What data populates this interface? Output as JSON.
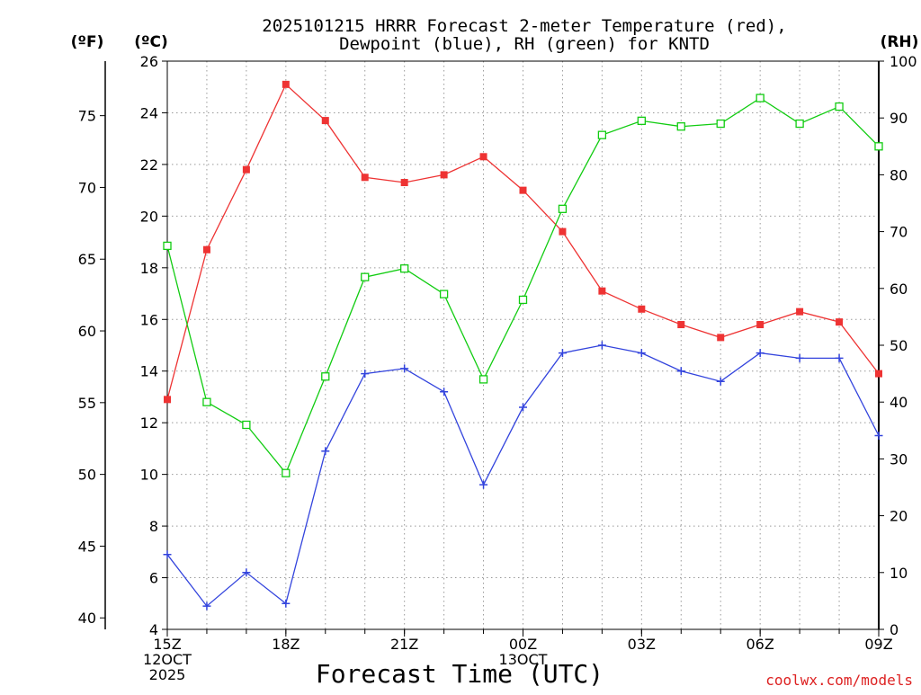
{
  "title": {
    "line1": "2025101215 HRRR Forecast 2-meter Temperature (red),",
    "line2": "Dewpoint (blue), RH (green) for KNTD"
  },
  "units": {
    "fahrenheit": "(ºF)",
    "celsius": "(ºC)",
    "rh": "(RH)"
  },
  "xlabel": "Forecast Time (UTC)",
  "credit": "coolwx.com/models",
  "colors": {
    "temperature": "#ee3333",
    "dewpoint": "#3344dd",
    "rh": "#11cc11",
    "grid": "#999999",
    "credit": "#dd2222"
  },
  "chart_data": {
    "type": "line",
    "x": [
      0,
      1,
      2,
      3,
      4,
      5,
      6,
      7,
      8,
      9,
      10,
      11,
      12,
      13,
      14,
      15,
      16,
      17,
      18
    ],
    "x_ticks": [
      {
        "x": 0,
        "lines": [
          "15Z",
          "12OCT",
          "2025"
        ]
      },
      {
        "x": 3,
        "lines": [
          "18Z"
        ]
      },
      {
        "x": 6,
        "lines": [
          "21Z"
        ]
      },
      {
        "x": 9,
        "lines": [
          "00Z",
          "13OCT"
        ]
      },
      {
        "x": 12,
        "lines": [
          "03Z"
        ]
      },
      {
        "x": 15,
        "lines": [
          "06Z"
        ]
      },
      {
        "x": 18,
        "lines": [
          "09Z"
        ]
      }
    ],
    "xlim": [
      0,
      18
    ],
    "celsius_axis": {
      "ylim": [
        4,
        26
      ],
      "ticks": [
        4,
        6,
        8,
        10,
        12,
        14,
        16,
        18,
        20,
        22,
        24,
        26
      ]
    },
    "fahrenheit_axis": {
      "ticks": [
        40,
        45,
        50,
        55,
        60,
        65,
        70,
        75
      ]
    },
    "rh_axis": {
      "ylim": [
        0,
        100
      ],
      "ticks": [
        0,
        10,
        20,
        30,
        40,
        50,
        60,
        70,
        80,
        90,
        100
      ]
    },
    "grid": true,
    "series": [
      {
        "key": "temperature",
        "axis": "celsius",
        "marker": "filled-square",
        "values": [
          12.9,
          18.7,
          21.8,
          25.1,
          23.7,
          21.5,
          21.3,
          21.6,
          22.3,
          21.0,
          19.4,
          17.1,
          16.4,
          15.8,
          15.3,
          15.8,
          16.3,
          15.9,
          13.9
        ]
      },
      {
        "key": "dewpoint",
        "axis": "celsius",
        "marker": "plus",
        "values": [
          6.9,
          4.9,
          6.2,
          5.0,
          10.9,
          13.9,
          14.1,
          13.2,
          9.6,
          12.6,
          14.7,
          15.0,
          14.7,
          14.0,
          13.6,
          14.7,
          14.5,
          14.5,
          11.5
        ]
      },
      {
        "key": "rh",
        "axis": "rh",
        "marker": "open-square",
        "values": [
          67.5,
          40.0,
          36.0,
          27.5,
          44.5,
          62.0,
          63.5,
          59.0,
          44.0,
          58.0,
          74.0,
          87.0,
          89.5,
          88.5,
          89.0,
          93.5,
          89.0,
          92.0,
          85.0
        ]
      }
    ]
  }
}
